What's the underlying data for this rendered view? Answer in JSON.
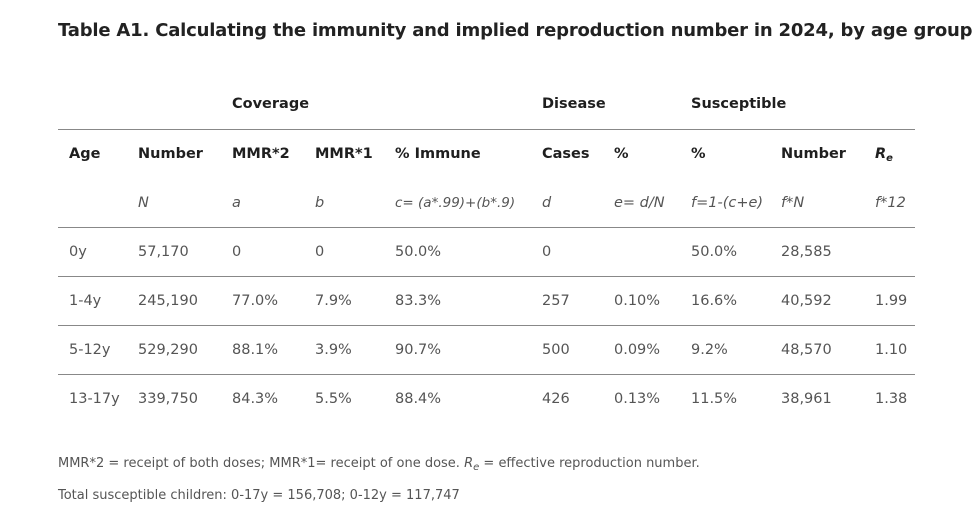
{
  "title": "Table A1. Calculating the immunity and implied reproduction number in 2024, by age group",
  "groups": {
    "coverage": "Coverage",
    "disease": "Disease",
    "susceptible": "Susceptible"
  },
  "headers": {
    "age": "Age",
    "number": "Number",
    "mmr2": "MMR*2",
    "mmr1": "MMR*1",
    "immune": "% Immune",
    "cases": "Cases",
    "pct": "%",
    "susc_pct": "%",
    "susc_number": "Number",
    "re_main": "R",
    "re_sub": "e"
  },
  "formulas": {
    "number": "N",
    "mmr2": "a",
    "mmr1": "b",
    "immune": "c= (a*.99)+(b*.9)",
    "cases": "d",
    "pct": "e= d/N",
    "susc_pct": "f=1-(c+e)",
    "susc_number": "f*N",
    "re": "f*12"
  },
  "rows": [
    {
      "age": "0y",
      "number": "57,170",
      "mmr2": "0",
      "mmr1": "0",
      "immune": "50.0%",
      "cases": "0",
      "pct": "",
      "susc_pct": "50.0%",
      "susc_number": "28,585",
      "re": ""
    },
    {
      "age": "1-4y",
      "number": "245,190",
      "mmr2": "77.0%",
      "mmr1": "7.9%",
      "immune": "83.3%",
      "cases": "257",
      "pct": "0.10%",
      "susc_pct": "16.6%",
      "susc_number": "40,592",
      "re": "1.99"
    },
    {
      "age": "5-12y",
      "number": "529,290",
      "mmr2": "88.1%",
      "mmr1": "3.9%",
      "immune": "90.7%",
      "cases": "500",
      "pct": "0.09%",
      "susc_pct": "9.2%",
      "susc_number": "48,570",
      "re": "1.10"
    },
    {
      "age": "13-17y",
      "number": "339,750",
      "mmr2": "84.3%",
      "mmr1": "5.5%",
      "immune": "88.4%",
      "cases": "426",
      "pct": "0.13%",
      "susc_pct": "11.5%",
      "susc_number": "38,961",
      "re": "1.38"
    }
  ],
  "notes": {
    "line1_a": "MMR*2 = receipt of both doses; MMR*1= receipt of one dose. ",
    "line1_re": "R",
    "line1_re_sub": "e",
    "line1_b": " = effective reproduction number.",
    "line2": "Total susceptible children:  0-17y = 156,708;  0-12y = 117,747"
  }
}
